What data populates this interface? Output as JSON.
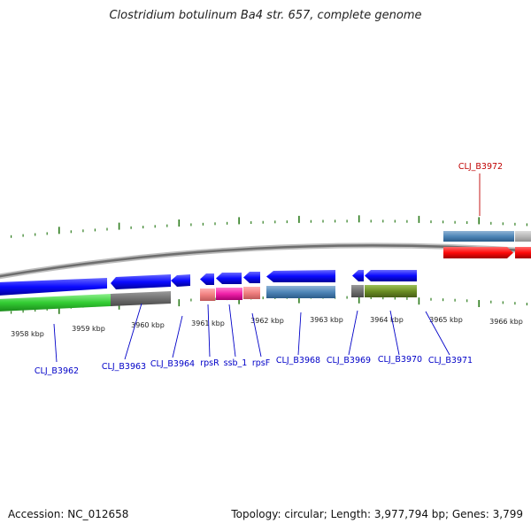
{
  "title": "Clostridium botulinum Ba4 str. 657, complete genome",
  "footer": {
    "accession": "Accession: NC_012658",
    "topology": "Topology: circular; Length: 3,977,794 bp; Genes: 3,799"
  },
  "colors": {
    "backbone": "#808080",
    "tick": "#2e7d1e",
    "label_blue": "#0000c8",
    "label_red": "#c00000"
  },
  "scale_labels": [
    "3958 kbp",
    "3959 kbp",
    "3960 kbp",
    "3961 kbp",
    "3962 kbp",
    "3963 kbp",
    "3964 kbp",
    "3965 kbp",
    "3966 kbp"
  ],
  "gene_labels": [
    {
      "text": "CLJ_B3962",
      "color": "blue"
    },
    {
      "text": "CLJ_B3963",
      "color": "blue"
    },
    {
      "text": "CLJ_B3964",
      "color": "blue"
    },
    {
      "text": "rpsR",
      "color": "blue"
    },
    {
      "text": "ssb_1",
      "color": "blue"
    },
    {
      "text": "rpsF",
      "color": "blue"
    },
    {
      "text": "CLJ_B3968",
      "color": "blue"
    },
    {
      "text": "CLJ_B3969",
      "color": "blue"
    },
    {
      "text": "CLJ_B3970",
      "color": "blue"
    },
    {
      "text": "CLJ_B3971",
      "color": "blue"
    },
    {
      "text": "CLJ_B3972",
      "color": "red"
    }
  ]
}
